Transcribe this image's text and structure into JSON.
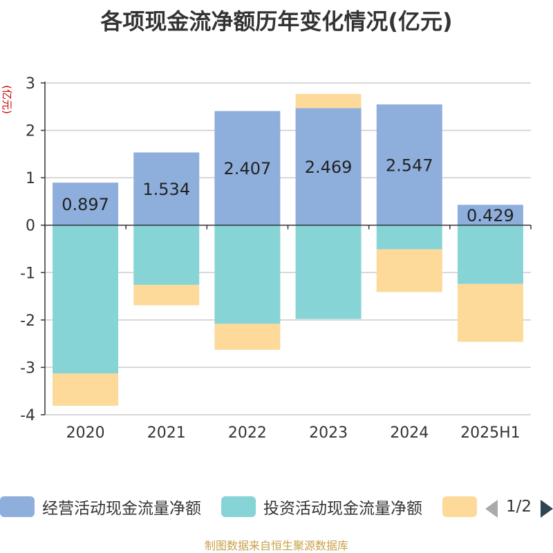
{
  "chart_data": {
    "type": "bar",
    "stacked": true,
    "title": "各项现金流净额历年变化情况(亿元)",
    "ylabel": "(亿元)",
    "ylim": [
      -4,
      3
    ],
    "yticks": [
      3,
      2,
      1,
      0,
      -1,
      -2,
      -3,
      -4
    ],
    "grid": true,
    "categories": [
      "2020",
      "2021",
      "2022",
      "2023",
      "2024",
      "2025H1"
    ],
    "series": [
      {
        "name": "经营活动现金流量净额",
        "color": "#8eaedc",
        "values": [
          0.897,
          1.534,
          2.407,
          2.469,
          2.547,
          0.429
        ],
        "labels_shown": true
      },
      {
        "name": "投资活动现金流量净额",
        "color": "#86d4d6",
        "values": [
          -3.13,
          -1.26,
          -2.08,
          -1.98,
          -0.51,
          -1.24
        ],
        "labels_shown": false
      },
      {
        "name": "",
        "color": "#fdd99a",
        "values": [
          -0.68,
          -0.43,
          -0.55,
          0.3,
          -0.9,
          -1.22
        ],
        "labels_shown": false
      }
    ],
    "legend_position": "bottom",
    "legend_page": "1/2"
  },
  "source_note": "制图数据来自恒生聚源数据库"
}
